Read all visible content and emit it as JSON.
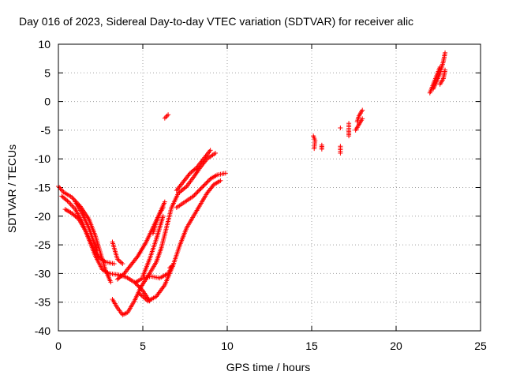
{
  "chart_data": {
    "type": "scatter",
    "title": "Day 016 of 2023, Sidereal Day-to-day VTEC variation (SDTVAR) for receiver alic",
    "xlabel": "GPS time / hours",
    "ylabel": "SDTVAR / TECUs",
    "xlim": [
      0,
      25
    ],
    "ylim": [
      -40,
      10
    ],
    "xticks": [
      0,
      5,
      10,
      15,
      20,
      25
    ],
    "yticks": [
      -40,
      -35,
      -30,
      -25,
      -20,
      -15,
      -10,
      -5,
      0,
      5,
      10
    ],
    "grid": true,
    "marker": "+",
    "color": "#ff0000",
    "tracks": [
      [
        [
          0.0,
          -14.8
        ],
        [
          0.3,
          -15.8
        ],
        [
          0.8,
          -16.7
        ],
        [
          1.3,
          -18.3
        ],
        [
          1.8,
          -20.5
        ],
        [
          2.2,
          -23.5
        ],
        [
          2.5,
          -26.5
        ],
        [
          2.8,
          -29.5
        ],
        [
          3.1,
          -31.5
        ]
      ],
      [
        [
          0.2,
          -16.5
        ],
        [
          0.6,
          -17.5
        ],
        [
          1.0,
          -18.8
        ],
        [
          1.4,
          -21.0
        ],
        [
          1.8,
          -24.0
        ],
        [
          2.2,
          -27.0
        ],
        [
          2.6,
          -29.3
        ],
        [
          3.0,
          -30.0
        ],
        [
          3.5,
          -30.2
        ],
        [
          4.0,
          -30.6
        ],
        [
          4.5,
          -31.5
        ],
        [
          5.0,
          -33.0
        ],
        [
          5.4,
          -34.8
        ]
      ],
      [
        [
          0.4,
          -18.8
        ],
        [
          0.8,
          -19.5
        ],
        [
          1.2,
          -20.5
        ],
        [
          1.6,
          -22.5
        ],
        [
          2.0,
          -25.0
        ],
        [
          2.4,
          -27.2
        ],
        [
          2.8,
          -28.0
        ],
        [
          3.3,
          -28.3
        ]
      ],
      [
        [
          1.0,
          -17.5
        ],
        [
          1.4,
          -19.5
        ],
        [
          1.8,
          -22.0
        ],
        [
          2.1,
          -24.5
        ],
        [
          2.3,
          -26.0
        ]
      ],
      [
        [
          3.2,
          -24.5
        ],
        [
          3.5,
          -27.5
        ],
        [
          3.8,
          -28.3
        ]
      ],
      [
        [
          3.2,
          -34.5
        ],
        [
          3.5,
          -36.0
        ],
        [
          3.8,
          -37.2
        ],
        [
          4.1,
          -36.8
        ],
        [
          4.5,
          -34.8
        ],
        [
          4.9,
          -32.3
        ],
        [
          5.4,
          -30.0
        ],
        [
          5.8,
          -28.0
        ],
        [
          6.1,
          -25.5
        ],
        [
          6.4,
          -22.0
        ],
        [
          6.7,
          -18.5
        ],
        [
          7.1,
          -16.0
        ],
        [
          7.6,
          -14.8
        ],
        [
          8.0,
          -13.2
        ],
        [
          8.4,
          -11.5
        ],
        [
          8.8,
          -10.0
        ],
        [
          9.3,
          -9.0
        ]
      ],
      [
        [
          3.5,
          -31.0
        ],
        [
          3.9,
          -30.0
        ],
        [
          4.3,
          -28.5
        ],
        [
          4.7,
          -27.0
        ],
        [
          5.2,
          -24.5
        ],
        [
          5.6,
          -22.0
        ],
        [
          6.0,
          -19.5
        ],
        [
          6.3,
          -17.5
        ]
      ],
      [
        [
          4.8,
          -33.5
        ],
        [
          5.3,
          -34.8
        ],
        [
          5.8,
          -34.0
        ],
        [
          6.3,
          -32.0
        ],
        [
          6.8,
          -28.5
        ],
        [
          7.2,
          -25.0
        ],
        [
          7.6,
          -22.0
        ],
        [
          8.0,
          -20.0
        ],
        [
          8.4,
          -18.0
        ],
        [
          8.8,
          -16.0
        ],
        [
          9.2,
          -14.5
        ],
        [
          9.6,
          -13.8
        ]
      ],
      [
        [
          4.6,
          -31.5
        ],
        [
          5.0,
          -30.8
        ],
        [
          5.5,
          -30.5
        ],
        [
          6.0,
          -30.8
        ],
        [
          6.5,
          -30.0
        ],
        [
          6.8,
          -28.5
        ]
      ],
      [
        [
          5.0,
          -30.5
        ],
        [
          5.4,
          -27.5
        ],
        [
          5.8,
          -24.0
        ],
        [
          6.0,
          -22.0
        ],
        [
          6.2,
          -20.0
        ]
      ],
      [
        [
          6.6,
          -29.0
        ],
        [
          6.8,
          -28.5
        ]
      ],
      [
        [
          5.6,
          -23.0
        ],
        [
          5.8,
          -21.0
        ],
        [
          6.0,
          -19.5
        ],
        [
          6.2,
          -18.5
        ]
      ],
      [
        [
          7.0,
          -18.5
        ],
        [
          7.5,
          -17.5
        ],
        [
          8.0,
          -16.5
        ],
        [
          8.5,
          -15.0
        ],
        [
          9.0,
          -13.5
        ],
        [
          9.4,
          -12.8
        ],
        [
          9.9,
          -12.5
        ]
      ],
      [
        [
          7.0,
          -15.5
        ],
        [
          7.4,
          -14.0
        ],
        [
          7.8,
          -12.5
        ],
        [
          8.2,
          -11.5
        ],
        [
          8.6,
          -10.0
        ],
        [
          9.0,
          -8.5
        ]
      ],
      [
        [
          6.3,
          -2.9
        ],
        [
          6.5,
          -2.3
        ]
      ],
      [
        [
          15.1,
          -6.0
        ],
        [
          15.2,
          -6.8
        ],
        [
          15.15,
          -8.2
        ]
      ],
      [
        [
          15.6,
          -8.3
        ],
        [
          15.6,
          -7.6
        ]
      ],
      [
        [
          16.7,
          -4.6
        ]
      ],
      [
        [
          16.7,
          -7.8
        ],
        [
          16.7,
          -9.0
        ]
      ],
      [
        [
          17.2,
          -6.0
        ],
        [
          17.2,
          -5.0
        ],
        [
          17.2,
          -3.8
        ]
      ],
      [
        [
          17.7,
          -3.5
        ],
        [
          17.8,
          -2.5
        ],
        [
          18.0,
          -1.5
        ]
      ],
      [
        [
          17.6,
          -5.0
        ],
        [
          17.8,
          -4.0
        ],
        [
          18.0,
          -3.0
        ]
      ],
      [
        [
          22.0,
          1.5
        ],
        [
          22.2,
          3.0
        ],
        [
          22.4,
          4.5
        ],
        [
          22.6,
          6.0
        ]
      ],
      [
        [
          22.2,
          2.2
        ],
        [
          22.4,
          3.5
        ],
        [
          22.6,
          5.0
        ],
        [
          22.8,
          7.0
        ],
        [
          22.9,
          8.5
        ]
      ],
      [
        [
          22.6,
          3.0
        ],
        [
          22.8,
          4.0
        ],
        [
          22.9,
          5.5
        ]
      ]
    ]
  }
}
